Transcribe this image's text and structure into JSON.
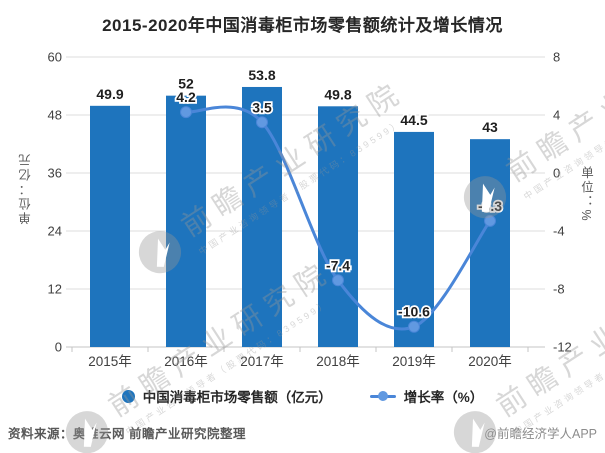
{
  "title": "2015-2020年中国消毒柜市场零售额统计及增长情况",
  "chart_data": {
    "type": "bar+line",
    "categories": [
      "2015年",
      "2016年",
      "2017年",
      "2018年",
      "2019年",
      "2020年"
    ],
    "series": [
      {
        "name": "中国消毒柜市场零售额（亿元）",
        "type": "bar",
        "axis": "left",
        "color": "#1e74bd",
        "values": [
          49.9,
          52,
          53.8,
          49.8,
          44.5,
          43
        ]
      },
      {
        "name": "增长率（%）",
        "type": "line",
        "axis": "right",
        "color": "#4a86d8",
        "marker_color": "#6199e1",
        "values": [
          null,
          4.2,
          3.5,
          -7.4,
          -10.6,
          -3.3
        ]
      }
    ],
    "left_axis": {
      "label": "单位：亿元",
      "min": 0,
      "max": 60,
      "ticks": [
        0,
        12,
        24,
        36,
        48,
        60
      ]
    },
    "right_axis": {
      "label": "单位：%",
      "min": -12,
      "max": 8,
      "ticks": [
        -12,
        -8,
        -4,
        0,
        4,
        8
      ]
    },
    "grid": true,
    "legend_position": "bottom"
  },
  "legend": [
    {
      "label": "中国消毒柜市场零售额（亿元）",
      "marker": "circle",
      "color": "#1e74bd"
    },
    {
      "label": "增长率（%）",
      "marker": "line-dot",
      "color": "#4a86d8",
      "dot_color": "#6199e1"
    }
  ],
  "footer": {
    "source": "资料来源：奥维云网 前瞻产业研究院整理",
    "credit": "@前瞻经济学人APP"
  },
  "watermark": {
    "text": "前瞻产业研究院",
    "subtext": "中国产业咨询领导者（股票代码：839599）"
  }
}
